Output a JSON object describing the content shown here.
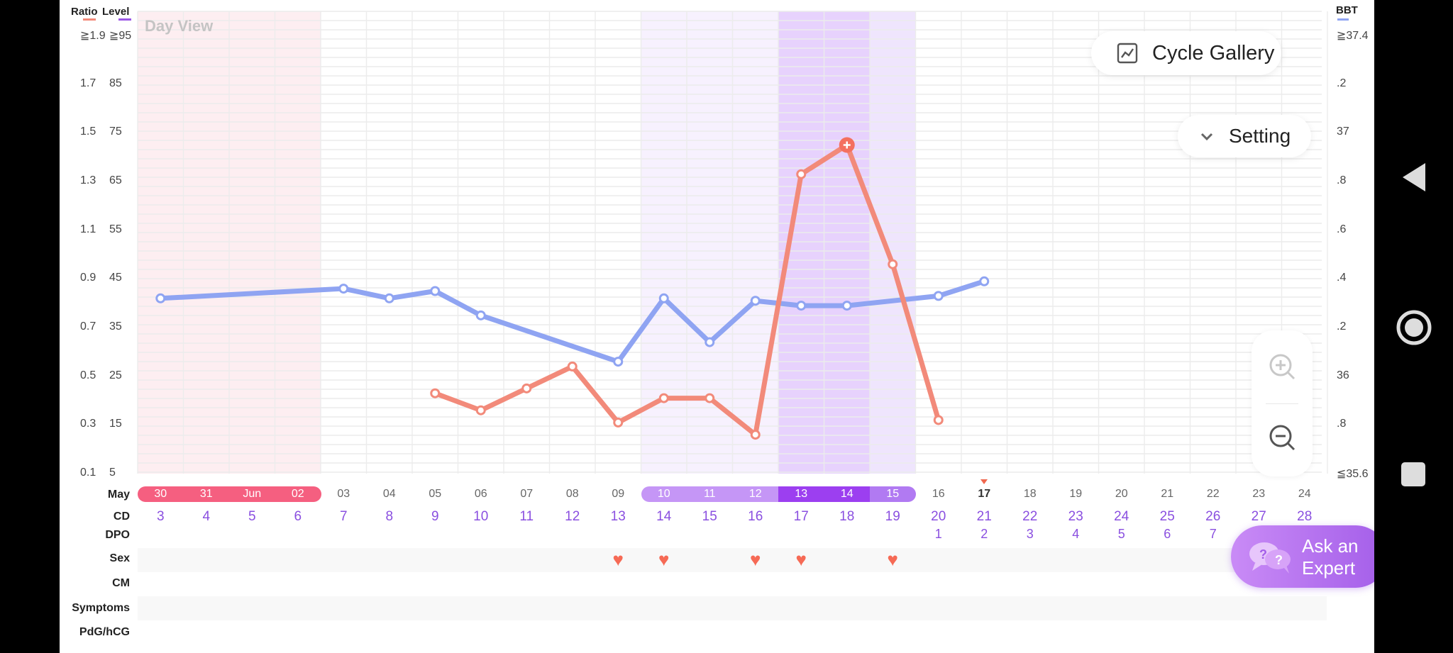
{
  "header": {
    "ratio_label": "Ratio",
    "level_label": "Level",
    "bbt_label": "BBT",
    "ratio_color": "#f28a7a",
    "level_color": "#9b57e6",
    "bbt_color": "#8fa4f2",
    "view_label": "Day View"
  },
  "axes": {
    "ratio_ticks": [
      "≧1.9",
      "1.7",
      "1.5",
      "1.3",
      "1.1",
      "0.9",
      "0.7",
      "0.5",
      "0.3",
      "0.1"
    ],
    "level_ticks": [
      "≧95",
      "85",
      "75",
      "65",
      "55",
      "45",
      "35",
      "25",
      "15",
      "5"
    ],
    "bbt_ticks": [
      "≧37.4",
      ".2",
      "37",
      ".8",
      ".6",
      ".4",
      ".2",
      "36",
      ".8",
      "≦35.6"
    ]
  },
  "buttons": {
    "cycle_gallery": "Cycle Gallery",
    "setting": "Setting",
    "ask_expert_line1": "Ask an",
    "ask_expert_line2": "Expert"
  },
  "rows": {
    "month": "May",
    "cd": "CD",
    "dpo": "DPO",
    "sex": "Sex",
    "cm": "CM",
    "symptoms": "Symptoms",
    "pdg": "PdG/hCG"
  },
  "days": {
    "dates": [
      "30",
      "31",
      "Jun",
      "02",
      "03",
      "04",
      "05",
      "06",
      "07",
      "08",
      "09",
      "10",
      "11",
      "12",
      "13",
      "14",
      "15",
      "16",
      "17",
      "18",
      "19",
      "20",
      "21",
      "22",
      "23",
      "24"
    ],
    "cd": [
      "3",
      "4",
      "5",
      "6",
      "7",
      "8",
      "9",
      "10",
      "11",
      "12",
      "13",
      "14",
      "15",
      "16",
      "17",
      "18",
      "19",
      "20",
      "21",
      "22",
      "23",
      "24",
      "25",
      "26",
      "27",
      "28"
    ],
    "dpo": [
      "",
      "",
      "",
      "",
      "",
      "",
      "",
      "",
      "",
      "",
      "",
      "",
      "",
      "",
      "",
      "",
      "",
      "1",
      "2",
      "3",
      "4",
      "5",
      "6",
      "7",
      "",
      ""
    ],
    "today_index": 18,
    "period_indices": [
      0,
      1,
      2,
      3
    ],
    "fertile_light_indices": [
      11,
      12,
      13
    ],
    "fertile_peak_indices": [
      14,
      15
    ],
    "fertile_end_indices": [
      16
    ],
    "sex_indices": [
      10,
      11,
      13,
      14,
      16
    ]
  },
  "chart_data": {
    "type": "line",
    "categories": [
      "30",
      "31",
      "Jun",
      "02",
      "03",
      "04",
      "05",
      "06",
      "07",
      "08",
      "09",
      "10",
      "11",
      "12",
      "13",
      "14",
      "15",
      "16",
      "17",
      "18",
      "19",
      "20",
      "21",
      "22",
      "23",
      "24"
    ],
    "series": [
      {
        "name": "BBT",
        "color": "#8fa4f2",
        "points": [
          [
            0,
            36.32
          ],
          [
            4,
            36.36
          ],
          [
            5,
            36.32
          ],
          [
            6,
            36.35
          ],
          [
            7,
            36.25
          ],
          [
            10,
            36.06
          ],
          [
            11,
            36.32
          ],
          [
            12,
            36.14
          ],
          [
            13,
            36.31
          ],
          [
            14,
            36.29
          ],
          [
            15,
            36.29
          ],
          [
            17,
            36.33
          ],
          [
            18,
            36.39
          ]
        ]
      },
      {
        "name": "Ratio",
        "color": "#f28a7a",
        "points": [
          [
            6,
            0.43
          ],
          [
            7,
            0.36
          ],
          [
            8,
            0.45
          ],
          [
            9,
            0.54
          ],
          [
            10,
            0.31
          ],
          [
            11,
            0.41
          ],
          [
            12,
            0.41
          ],
          [
            13,
            0.26
          ],
          [
            14,
            1.33
          ],
          [
            15,
            1.45
          ],
          [
            16,
            0.96
          ],
          [
            17,
            0.32
          ]
        ]
      }
    ],
    "ratio_ylim": [
      0.1,
      1.9
    ],
    "bbt_ylim": [
      35.6,
      37.4
    ],
    "peak_index": 15
  }
}
